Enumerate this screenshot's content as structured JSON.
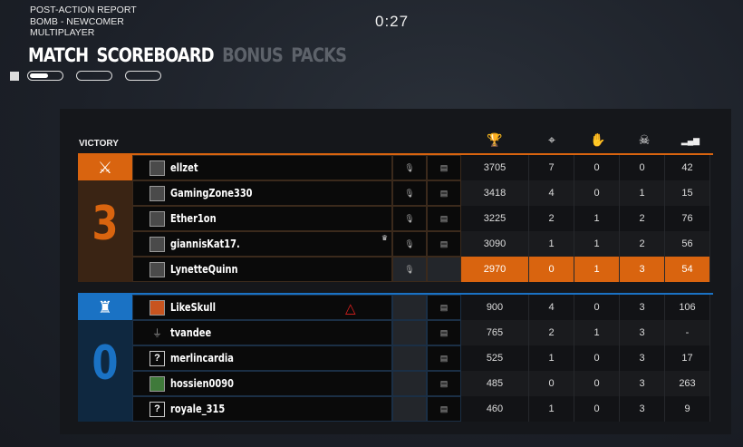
{
  "header": {
    "lines": [
      "POST-ACTION REPORT",
      "BOMB - NEWCOMER",
      "MULTIPLAYER"
    ],
    "timer": "0:27"
  },
  "tabs": [
    {
      "label": "MATCH",
      "active": true
    },
    {
      "label": "SCOREBOARD",
      "active": true
    },
    {
      "label": "BONUS",
      "active": false
    },
    {
      "label": "PACKS",
      "active": false
    }
  ],
  "result": "VICTORY",
  "columns": [
    {
      "icon": "trophy-icon",
      "glyph": "🏆"
    },
    {
      "icon": "crosshair-icon",
      "glyph": "⌖"
    },
    {
      "icon": "hand-icon",
      "glyph": "✋"
    },
    {
      "icon": "skull-icon",
      "glyph": "☠"
    },
    {
      "icon": "signal-icon",
      "glyph": "▂▄▆"
    }
  ],
  "colors": {
    "orange": "#d9640f",
    "blue": "#1a72c4"
  },
  "teams": [
    {
      "side": "attackers",
      "score": "3",
      "emblem": "crossed-swords-icon",
      "players": [
        {
          "name": "ellzet",
          "stats": [
            "3705",
            "7",
            "0",
            "0",
            "42"
          ],
          "mic": true,
          "chat": true
        },
        {
          "name": "GamingZone330",
          "stats": [
            "3418",
            "4",
            "0",
            "1",
            "15"
          ],
          "mic": true,
          "chat": true
        },
        {
          "name": "Ether1on",
          "stats": [
            "3225",
            "2",
            "1",
            "2",
            "76"
          ],
          "mic": true,
          "chat": true
        },
        {
          "name": "giannisKat17.",
          "stats": [
            "3090",
            "1",
            "1",
            "2",
            "56"
          ],
          "mic": true,
          "chat": true,
          "crown": true
        },
        {
          "name": "LynetteQuinn",
          "stats": [
            "2970",
            "0",
            "1",
            "3",
            "54"
          ],
          "mic": true,
          "chat": false,
          "self": true
        }
      ]
    },
    {
      "side": "defenders",
      "score": "0",
      "emblem": "tower-icon",
      "players": [
        {
          "name": "LikeSkull",
          "stats": [
            "900",
            "4",
            "0",
            "3",
            "106"
          ],
          "chat": true,
          "badge": "triangle"
        },
        {
          "name": "tvandee",
          "stats": [
            "765",
            "2",
            "1",
            "3",
            "-"
          ],
          "chat": true,
          "avatar": "plug"
        },
        {
          "name": "merlincardia",
          "stats": [
            "525",
            "1",
            "0",
            "3",
            "17"
          ],
          "chat": true,
          "avatar": "?"
        },
        {
          "name": "hossien0090",
          "stats": [
            "485",
            "0",
            "0",
            "3",
            "263"
          ],
          "chat": true
        },
        {
          "name": "royale_315",
          "stats": [
            "460",
            "1",
            "0",
            "3",
            "9"
          ],
          "chat": true,
          "avatar": "?"
        }
      ]
    }
  ]
}
